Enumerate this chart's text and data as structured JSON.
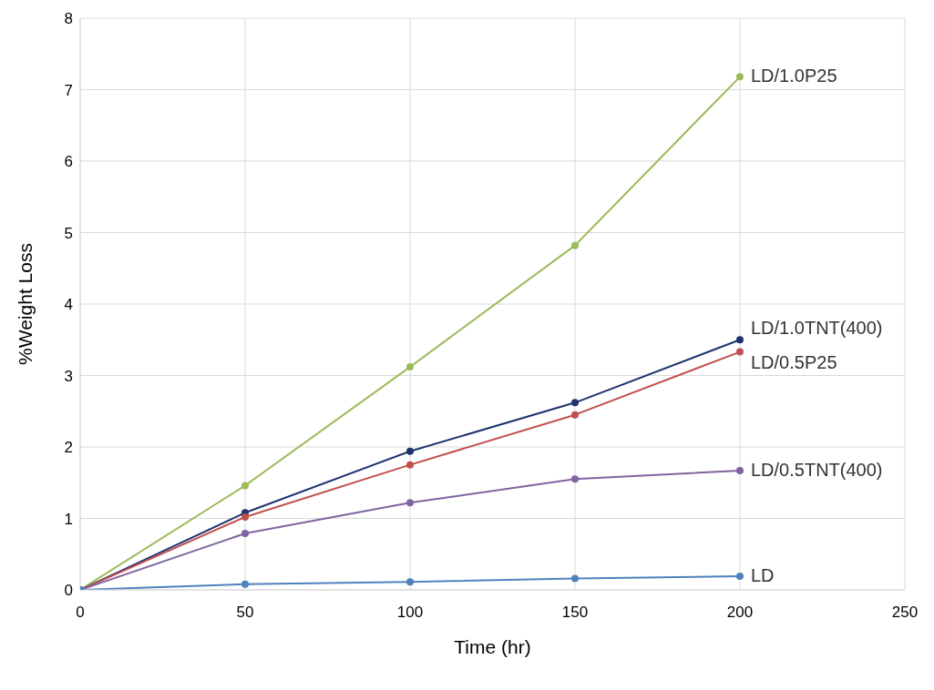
{
  "chart_data": {
    "type": "line",
    "xlabel": "Time (hr)",
    "ylabel": "%Weight Loss",
    "x": [
      0,
      50,
      100,
      150,
      200
    ],
    "series": [
      {
        "name": "LD/1.0P25",
        "color": "#9bbb59",
        "values": [
          0,
          1.46,
          3.12,
          4.82,
          7.18
        ]
      },
      {
        "name": "LD/1.0TNT(400)",
        "color": "#1f3370",
        "values": [
          0,
          1.08,
          1.94,
          2.62,
          3.5
        ]
      },
      {
        "name": "LD/0.5P25",
        "color": "#c0504d",
        "values": [
          0,
          1.02,
          1.75,
          2.45,
          3.33
        ]
      },
      {
        "name": "LD/0.5TNT(400)",
        "color": "#8064a2",
        "values": [
          0,
          0.79,
          1.22,
          1.55,
          1.67
        ]
      },
      {
        "name": "LD",
        "color": "#4f81bd",
        "values": [
          0,
          0.08,
          0.11,
          0.16,
          0.19
        ]
      }
    ],
    "xlim": [
      0,
      250
    ],
    "xticks": [
      0,
      50,
      100,
      150,
      200,
      250
    ],
    "ylim": [
      0,
      8
    ],
    "yticks": [
      0,
      1,
      2,
      3,
      4,
      5,
      6,
      7,
      8
    ],
    "grid": true,
    "legend": false,
    "marker": "circle",
    "line_style": "solid"
  }
}
